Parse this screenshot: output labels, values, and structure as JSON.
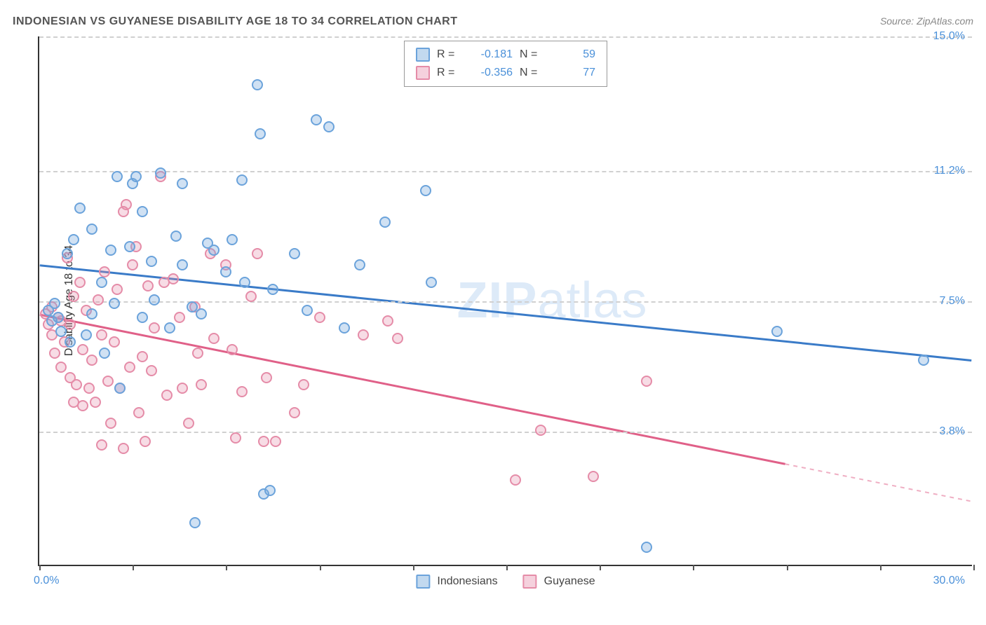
{
  "title": "INDONESIAN VS GUYANESE DISABILITY AGE 18 TO 34 CORRELATION CHART",
  "source": "Source: ZipAtlas.com",
  "watermark_bold": "ZIP",
  "watermark_rest": "atlas",
  "chart": {
    "type": "scatter",
    "background_color": "#ffffff",
    "grid_color": "#d0d0d0",
    "axis_color": "#333333",
    "tick_label_color": "#4a90d9",
    "xlim": [
      0,
      30
    ],
    "ylim": [
      0,
      15
    ],
    "ytick_positions": [
      3.8,
      7.5,
      11.2,
      15.0
    ],
    "ytick_labels": [
      "3.8%",
      "7.5%",
      "11.2%",
      "15.0%"
    ],
    "xtick_positions": [
      0,
      3,
      6,
      9,
      12,
      15,
      18,
      21,
      24,
      27,
      30
    ],
    "xaxis_label_left": "0.0%",
    "xaxis_label_right": "30.0%",
    "yaxis_title": "Disability Age 18 to 34",
    "title_fontsize": 16,
    "label_fontsize": 16,
    "marker_radius": 8,
    "series": [
      {
        "name": "Indonesians",
        "fill_color": "rgba(120,170,220,0.35)",
        "stroke_color": "#6ba3db",
        "line_color": "#3a7bc8",
        "line_width": 3,
        "trend": {
          "x1": 0,
          "y1": 8.5,
          "x2": 30,
          "y2": 5.8,
          "x_solid_end": 30
        },
        "R": "-0.181",
        "N": "59",
        "points": [
          [
            0.3,
            7.2
          ],
          [
            0.4,
            6.9
          ],
          [
            0.5,
            7.4
          ],
          [
            0.6,
            7.0
          ],
          [
            0.7,
            6.6
          ],
          [
            0.9,
            8.8
          ],
          [
            1.0,
            6.3
          ],
          [
            1.1,
            9.2
          ],
          [
            1.3,
            10.1
          ],
          [
            1.5,
            6.5
          ],
          [
            1.7,
            9.5
          ],
          [
            1.7,
            7.1
          ],
          [
            2.0,
            8.0
          ],
          [
            2.1,
            6.0
          ],
          [
            2.3,
            8.9
          ],
          [
            2.4,
            7.4
          ],
          [
            2.5,
            11.0
          ],
          [
            2.6,
            5.0
          ],
          [
            2.9,
            9.0
          ],
          [
            3.0,
            10.8
          ],
          [
            3.1,
            11.0
          ],
          [
            3.3,
            7.0
          ],
          [
            3.3,
            10.0
          ],
          [
            3.6,
            8.6
          ],
          [
            3.7,
            7.5
          ],
          [
            3.9,
            11.1
          ],
          [
            4.2,
            6.7
          ],
          [
            4.4,
            9.3
          ],
          [
            4.6,
            8.5
          ],
          [
            4.6,
            10.8
          ],
          [
            4.9,
            7.3
          ],
          [
            5.0,
            1.2
          ],
          [
            5.2,
            7.1
          ],
          [
            5.4,
            9.1
          ],
          [
            5.6,
            8.9
          ],
          [
            6.0,
            8.3
          ],
          [
            6.2,
            9.2
          ],
          [
            6.5,
            10.9
          ],
          [
            6.6,
            8.0
          ],
          [
            7.0,
            13.6
          ],
          [
            7.1,
            12.2
          ],
          [
            7.2,
            2.0
          ],
          [
            7.4,
            2.1
          ],
          [
            7.5,
            7.8
          ],
          [
            8.2,
            8.8
          ],
          [
            8.6,
            7.2
          ],
          [
            8.9,
            12.6
          ],
          [
            9.3,
            12.4
          ],
          [
            9.8,
            6.7
          ],
          [
            10.3,
            8.5
          ],
          [
            11.1,
            9.7
          ],
          [
            12.4,
            10.6
          ],
          [
            12.6,
            8.0
          ],
          [
            19.5,
            0.5
          ],
          [
            23.7,
            6.6
          ],
          [
            28.4,
            5.8
          ]
        ]
      },
      {
        "name": "Guyanese",
        "fill_color": "rgba(230,140,170,0.30)",
        "stroke_color": "#e58ca8",
        "line_color": "#e06088",
        "line_width": 3,
        "trend": {
          "x1": 0,
          "y1": 7.1,
          "x2": 30,
          "y2": 1.8,
          "x_solid_end": 24
        },
        "R": "-0.356",
        "N": "77",
        "points": [
          [
            0.2,
            7.1
          ],
          [
            0.3,
            6.8
          ],
          [
            0.4,
            7.3
          ],
          [
            0.4,
            6.5
          ],
          [
            0.5,
            6.0
          ],
          [
            0.6,
            7.0
          ],
          [
            0.7,
            6.9
          ],
          [
            0.7,
            5.6
          ],
          [
            0.8,
            6.3
          ],
          [
            0.9,
            8.7
          ],
          [
            1.0,
            5.3
          ],
          [
            1.0,
            6.8
          ],
          [
            1.1,
            4.6
          ],
          [
            1.1,
            7.6
          ],
          [
            1.2,
            5.1
          ],
          [
            1.3,
            8.0
          ],
          [
            1.4,
            4.5
          ],
          [
            1.4,
            6.1
          ],
          [
            1.5,
            7.2
          ],
          [
            1.6,
            5.0
          ],
          [
            1.7,
            5.8
          ],
          [
            1.8,
            4.6
          ],
          [
            1.9,
            7.5
          ],
          [
            2.0,
            6.5
          ],
          [
            2.0,
            3.4
          ],
          [
            2.1,
            8.3
          ],
          [
            2.2,
            5.2
          ],
          [
            2.3,
            4.0
          ],
          [
            2.4,
            6.3
          ],
          [
            2.5,
            7.8
          ],
          [
            2.6,
            5.0
          ],
          [
            2.7,
            10.0
          ],
          [
            2.7,
            3.3
          ],
          [
            2.8,
            10.2
          ],
          [
            2.9,
            5.6
          ],
          [
            3.0,
            8.5
          ],
          [
            3.1,
            9.0
          ],
          [
            3.2,
            4.3
          ],
          [
            3.3,
            5.9
          ],
          [
            3.4,
            3.5
          ],
          [
            3.5,
            7.9
          ],
          [
            3.6,
            5.5
          ],
          [
            3.7,
            6.7
          ],
          [
            3.9,
            11.0
          ],
          [
            4.0,
            8.0
          ],
          [
            4.1,
            4.8
          ],
          [
            4.3,
            8.1
          ],
          [
            4.5,
            7.0
          ],
          [
            4.6,
            5.0
          ],
          [
            4.8,
            4.0
          ],
          [
            5.0,
            7.3
          ],
          [
            5.1,
            6.0
          ],
          [
            5.2,
            5.1
          ],
          [
            5.5,
            8.8
          ],
          [
            5.6,
            6.4
          ],
          [
            6.0,
            8.5
          ],
          [
            6.2,
            6.1
          ],
          [
            6.3,
            3.6
          ],
          [
            6.5,
            4.9
          ],
          [
            6.8,
            7.6
          ],
          [
            7.0,
            8.8
          ],
          [
            7.2,
            3.5
          ],
          [
            7.3,
            5.3
          ],
          [
            7.6,
            3.5
          ],
          [
            8.2,
            4.3
          ],
          [
            8.5,
            5.1
          ],
          [
            9.0,
            7.0
          ],
          [
            10.4,
            6.5
          ],
          [
            11.2,
            6.9
          ],
          [
            11.5,
            6.4
          ],
          [
            15.3,
            2.4
          ],
          [
            16.1,
            3.8
          ],
          [
            17.8,
            2.5
          ],
          [
            19.5,
            5.2
          ]
        ]
      }
    ]
  },
  "legend_top": {
    "r_label": "R =",
    "n_label": "N ="
  },
  "legend_bottom": {}
}
